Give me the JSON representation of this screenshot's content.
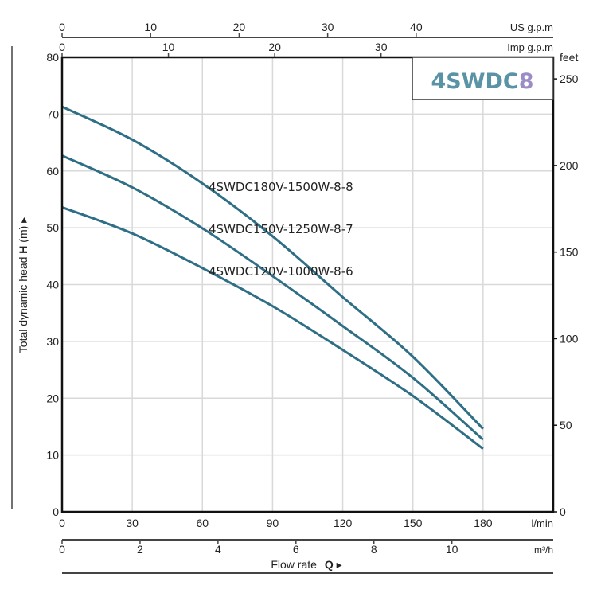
{
  "chart_data": {
    "type": "line",
    "title": "4SWDC8",
    "title_main": "4SWDC",
    "title_suffix": "8",
    "ylabel": "Total dynamic head H (m) ▸",
    "ylabel_prefix": "Total dynamic head ",
    "ylabel_bold": "H",
    "ylabel_suffix": " (m) ▸",
    "xlabel_prefix": "Flow rate ",
    "xlabel_bold": "Q",
    "xlabel_suffix": " ▸",
    "xlim": [
      0,
      210
    ],
    "ylim": [
      0,
      80
    ],
    "grid": true,
    "x_unit": "l/min",
    "x_ticks": [
      0,
      30,
      60,
      90,
      120,
      150,
      180
    ],
    "y_ticks": [
      0,
      10,
      20,
      30,
      40,
      50,
      60,
      70,
      80
    ],
    "right_axis": {
      "unit": "feet",
      "ticks": [
        0,
        50,
        100,
        150,
        200,
        250
      ]
    },
    "top_axis_us": {
      "unit": "US g.p.m",
      "ticks": [
        0,
        10,
        20,
        30,
        40
      ]
    },
    "top_axis_imp": {
      "unit": "Imp g.p.m",
      "ticks": [
        0,
        10,
        20,
        30
      ]
    },
    "bottom_axis_m3h": {
      "unit": "m³/h",
      "ticks": [
        0,
        2,
        4,
        6,
        8,
        10
      ]
    },
    "x": [
      0,
      30,
      60,
      90,
      120,
      150,
      180
    ],
    "series": [
      {
        "name": "4SWDC180V-1500W-8-8",
        "values": [
          71.3,
          65.5,
          57.8,
          48.5,
          37.8,
          27.3,
          14.6
        ]
      },
      {
        "name": "4SWDC150V-1250W-8-7",
        "values": [
          62.7,
          57.1,
          49.9,
          41.5,
          32.7,
          23.6,
          12.7
        ]
      },
      {
        "name": "4SWDC120V-1000W-8-6",
        "values": [
          53.6,
          49.0,
          42.9,
          36.2,
          28.5,
          20.4,
          11.1
        ]
      }
    ],
    "colors": {
      "curve": "#2f6f86",
      "title": "#5a93a6",
      "title_suffix": "#9a8cc6",
      "grid": "#d9d9d9"
    }
  }
}
